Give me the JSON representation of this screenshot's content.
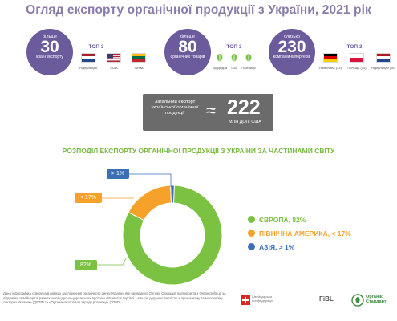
{
  "title": "Огляд експорту органічної продукції з України, 2021 рік",
  "blocks": [
    {
      "top": "більше",
      "num": "30",
      "sub": "країн експорту",
      "top3": "ТОП 3",
      "items": [
        "Нідерланди",
        "США",
        "Литва"
      ]
    },
    {
      "top": "більше",
      "num": "80",
      "sub": "органічних товарів",
      "top3": "ТОП 3",
      "items": [
        "Кукурудза",
        "Соя",
        "Пшениця"
      ]
    },
    {
      "top": "близько",
      "num": "230",
      "sub": "компаній-імпортерів",
      "top3": "ТОП 3",
      "items": [
        "Німеччина (33)",
        "Польща (30)",
        "Нідерланди (26)"
      ]
    }
  ],
  "stat": {
    "label": "Загальний експорт української органічної продукції",
    "approx": "≈",
    "value": "222",
    "unit": "МЛН ДОЛ. США"
  },
  "colors": {
    "purple": "#6b5a9c",
    "green": "#7bc142",
    "orange": "#f6a22a",
    "blue": "#3a6fb6",
    "grey": "#6b6b6b"
  },
  "chart_data": {
    "type": "pie",
    "title": "РОЗПОДІЛ ЕКСПОРТУ ОРГАНІЧНОЇ ПРОДУКЦІЇ З УКРАЇНИ ЗА ЧАСТИНАМИ СВІТУ",
    "categories": [
      "ЄВРОПА",
      "ПІВНІЧНА АМЕРИКА",
      "АЗІЯ"
    ],
    "values": [
      82,
      16.8,
      1.2
    ],
    "data_labels": [
      "82%",
      "< 17%",
      "> 1%"
    ],
    "legend_labels": [
      "ЄВРОПА, 82%",
      "ПІВНІЧНА АМЕРИКА, < 17%",
      "АЗІЯ, > 1%"
    ],
    "colors": [
      "#7bc142",
      "#f6a22a",
      "#3a6fb6"
    ],
    "legend_position": "right",
    "donut": true
  },
  "footer": {
    "text": "Дана інфографіка створена в рамках дослідження органічного ринку України, яке проводило Органік Стандарт партнери та з OrganicInfo.ua за підтримки Швейцарії в рамках швейцарсько-українських програм «Розвиток торгівлі з вищою доданою вартістю в органічному та молочному секторах України» (QFTP) та «Органічна торгівля заради розвитку» (OT4D)",
    "logos": [
      "Швейцарська Конфедерація",
      "FiBL",
      "Органік Стандарт"
    ]
  }
}
